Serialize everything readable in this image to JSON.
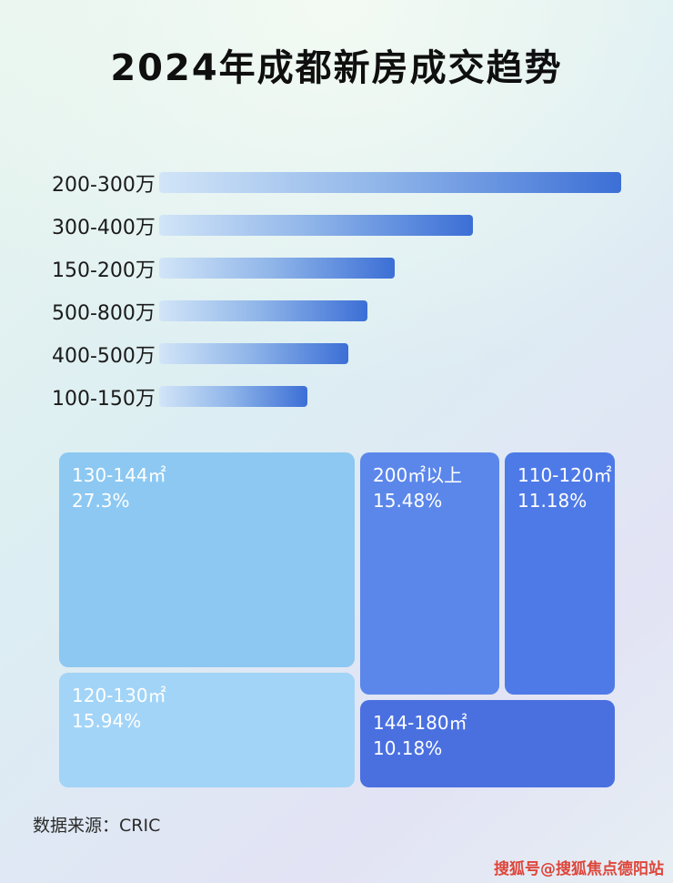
{
  "page": {
    "title": "2024年成都新房成交趋势",
    "footer": "数据来源：CRIC",
    "watermark": "搜狐号@搜狐焦点德阳站"
  },
  "colors": {
    "bar_gradient_start": "#d2e5f8",
    "bar_gradient_end": "#3c6fd6",
    "watermark_red": "#de382b",
    "title_text": "#0f0f0f"
  },
  "chart_data": [
    {
      "type": "bar",
      "title": "2024年成都新房成交趋势",
      "orientation": "horizontal",
      "categories": [
        "200-300万",
        "300-400万",
        "150-200万",
        "500-800万",
        "400-500万",
        "100-150万"
      ],
      "values_pct_of_max": [
        100,
        68,
        51,
        45,
        41,
        32
      ],
      "xlabel": "",
      "ylabel": "",
      "grid": false,
      "legend": false
    },
    {
      "type": "heatmap",
      "subtype": "treemap",
      "items": [
        {
          "label": "130-144㎡",
          "value": "27.3%",
          "color": "#8cc8f2"
        },
        {
          "label": "120-130㎡",
          "value": "15.94%",
          "color": "#a2d4f7"
        },
        {
          "label": "200㎡以上",
          "value": "15.48%",
          "color": "#5b87ea"
        },
        {
          "label": "110-120㎡",
          "value": "11.18%",
          "color": "#4e7ae7"
        },
        {
          "label": "144-180㎡",
          "value": "10.18%",
          "color": "#4a70e0"
        }
      ]
    }
  ]
}
